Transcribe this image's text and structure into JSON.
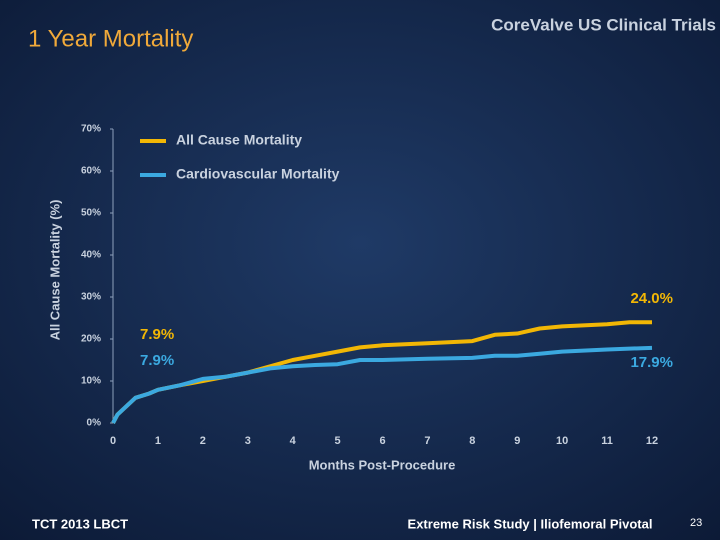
{
  "header": {
    "title": "1 Year Mortality",
    "brand": "CoreValve US Clinical Trials"
  },
  "chart_data": {
    "type": "line",
    "xlabel": "Months Post-Procedure",
    "ylabel": "All Cause Mortality (%)",
    "x": [
      0,
      0.1,
      0.3,
      0.5,
      0.8,
      1,
      1.5,
      2,
      2.5,
      3,
      3.5,
      4,
      4.5,
      5,
      5.5,
      6,
      7,
      8,
      8.5,
      9,
      9.5,
      10,
      11,
      11.5,
      12
    ],
    "series": [
      {
        "name": "All Cause Mortality",
        "color": "#f2b705",
        "values": [
          0,
          2,
          4,
          6,
          7,
          7.9,
          9,
          10,
          11,
          12,
          13.5,
          15,
          16,
          17,
          18,
          18.5,
          19,
          19.5,
          21,
          21.3,
          22.5,
          23,
          23.5,
          24,
          24.0
        ]
      },
      {
        "name": "Cardiovascular Mortality",
        "color": "#3ba9e0",
        "values": [
          0,
          2,
          4,
          6,
          7,
          7.9,
          9,
          10.5,
          11,
          12,
          13,
          13.5,
          13.8,
          14,
          15,
          15,
          15.3,
          15.5,
          16,
          16,
          16.5,
          17,
          17.5,
          17.7,
          17.9
        ]
      }
    ],
    "annotations": [
      "7.9%",
      "7.9%",
      "24.0%",
      "17.9%"
    ],
    "xlim": [
      0,
      12
    ],
    "xticks": [
      0,
      1,
      2,
      3,
      4,
      5,
      6,
      7,
      8,
      9,
      10,
      11,
      12
    ],
    "ylim": [
      0,
      70
    ],
    "yticks": [
      {
        "value": 0,
        "label": "0%"
      },
      {
        "value": 10,
        "label": "10%"
      },
      {
        "value": 20,
        "label": "20%"
      },
      {
        "value": 30,
        "label": "30%"
      },
      {
        "value": 40,
        "label": "40%"
      },
      {
        "value": 50,
        "label": "50%"
      },
      {
        "value": 60,
        "label": "60%"
      },
      {
        "value": 70,
        "label": "70%"
      }
    ],
    "legend": "upper left"
  },
  "footer": {
    "left": "TCT 2013 LBCT",
    "center": "Extreme Risk Study | Iliofemoral Pivotal",
    "page": "23"
  }
}
